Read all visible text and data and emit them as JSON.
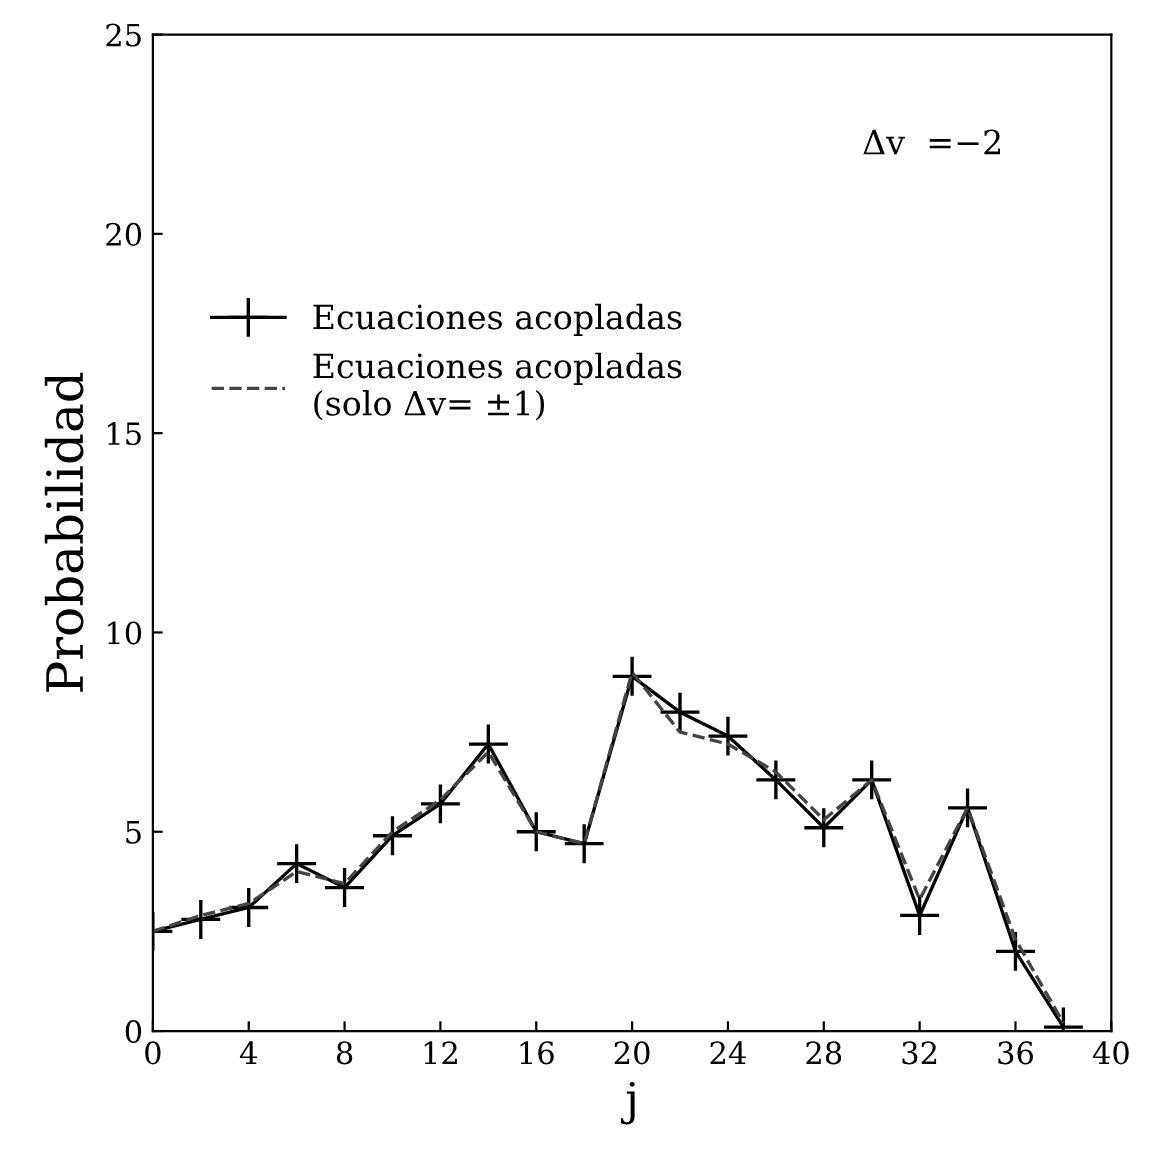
{
  "chart_data": {
    "type": "line",
    "xlabel": "j",
    "ylabel": "Probabilidad",
    "annotations": [
      "Δv  =−2"
    ],
    "x": [
      0,
      2,
      4,
      6,
      8,
      10,
      12,
      14,
      16,
      18,
      20,
      22,
      24,
      26,
      28,
      30,
      32,
      34,
      36,
      38
    ],
    "series": [
      {
        "name": "Ecuaciones acopladas",
        "color": "#000000",
        "marker": "cross",
        "line_style": "solid",
        "values": [
          2.5,
          2.8,
          3.1,
          4.2,
          3.6,
          4.9,
          5.7,
          7.2,
          5.0,
          4.7,
          8.9,
          8.0,
          7.4,
          6.3,
          5.1,
          6.3,
          2.9,
          5.6,
          2.0,
          0.1
        ]
      },
      {
        "name": "Ecuaciones acopladas\n(solo Δv= ±1)",
        "color": "#444444",
        "marker": "none",
        "line_style": "dashed",
        "values": [
          2.5,
          2.9,
          3.2,
          4.0,
          3.7,
          5.0,
          5.8,
          7.0,
          5.0,
          4.7,
          9.0,
          7.5,
          7.2,
          6.5,
          5.3,
          6.3,
          3.3,
          5.6,
          2.3,
          0.2
        ]
      }
    ],
    "xlim": [
      0,
      40
    ],
    "xticks": [
      0,
      4,
      8,
      12,
      16,
      20,
      24,
      28,
      32,
      36,
      40
    ],
    "ylim": [
      0,
      25
    ],
    "yticks": [
      0,
      5,
      10,
      15,
      20,
      25
    ],
    "grid": false,
    "legend": "top left"
  }
}
